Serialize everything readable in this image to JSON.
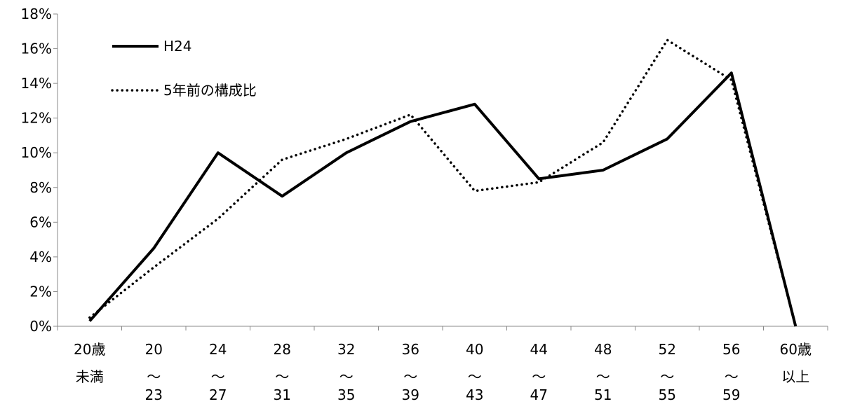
{
  "chart_data": {
    "type": "line",
    "ylim": [
      0,
      18
    ],
    "y_ticks": [
      "0%",
      "2%",
      "4%",
      "6%",
      "8%",
      "10%",
      "12%",
      "14%",
      "16%",
      "18%"
    ],
    "y_tick_values": [
      0,
      2,
      4,
      6,
      8,
      10,
      12,
      14,
      16,
      18
    ],
    "categories": [
      {
        "lines": [
          "20歳",
          "未満",
          ""
        ]
      },
      {
        "lines": [
          "20",
          "～",
          "23"
        ]
      },
      {
        "lines": [
          "24",
          "～",
          "27"
        ]
      },
      {
        "lines": [
          "28",
          "～",
          "31"
        ]
      },
      {
        "lines": [
          "32",
          "～",
          "35"
        ]
      },
      {
        "lines": [
          "36",
          "～",
          "39"
        ]
      },
      {
        "lines": [
          "40",
          "～",
          "43"
        ]
      },
      {
        "lines": [
          "44",
          "～",
          "47"
        ]
      },
      {
        "lines": [
          "48",
          "～",
          "51"
        ]
      },
      {
        "lines": [
          "52",
          "～",
          "55"
        ]
      },
      {
        "lines": [
          "56",
          "～",
          "59"
        ]
      },
      {
        "lines": [
          "60歳",
          "以上",
          ""
        ]
      }
    ],
    "series": [
      {
        "name": "H24",
        "style": "solid",
        "color": "#000000",
        "values": [
          0.3,
          4.5,
          10.0,
          7.5,
          10.0,
          11.8,
          12.8,
          8.5,
          9.0,
          10.8,
          14.6,
          0.0
        ]
      },
      {
        "name": "5年前の構成比",
        "style": "dotted",
        "color": "#000000",
        "values": [
          0.5,
          3.4,
          6.2,
          9.6,
          10.8,
          12.2,
          7.8,
          8.3,
          10.6,
          16.5,
          14.2,
          0.0
        ]
      }
    ],
    "grid": false,
    "legend_position": "top-left"
  }
}
